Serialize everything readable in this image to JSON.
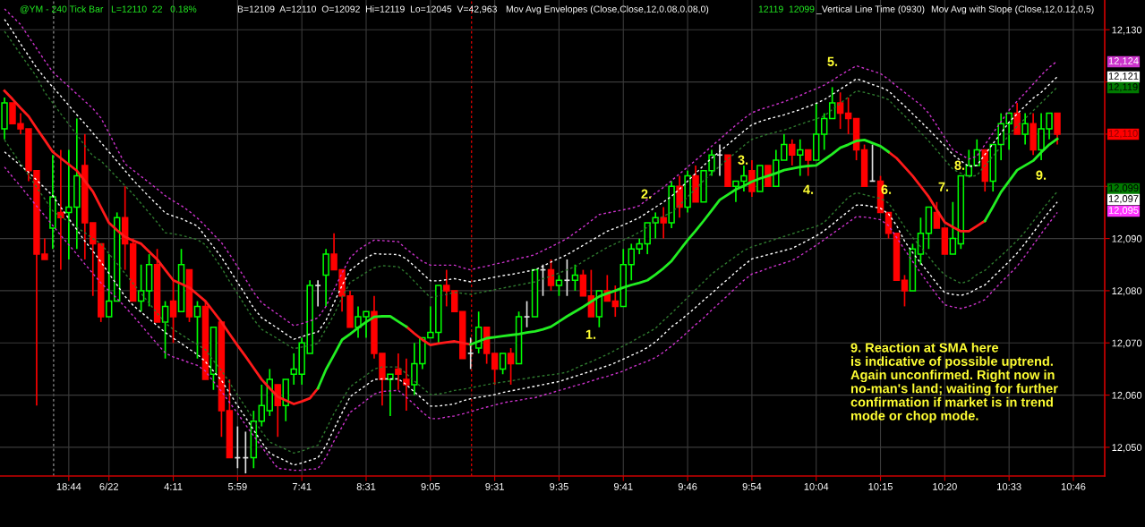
{
  "chart_data": {
    "type": "candlestick",
    "title": "@YM - 240 Tick Bar   L=12110  22   0.18%",
    "subtitle": "B=12109  A=12110  O=12092  Hi=12119  Lo=12045  V=42,963",
    "annotations": [
      "Mov Avg Envelopes (Close,Close,12,0.08,0.08,0)",
      "12119  12099",
      "_Vertical Line Time (0930)",
      "Mov Avg with Slope (Close,12,0.12,0,5)",
      "9. Reaction at SMA here\nis indicative of possible uptrend.\nAgain unconfirmed. Right now in\nno-man's land; waiting for further\nconfirmation if market is in trend\nmode or chop mode.",
      "1.",
      "2.",
      "3.",
      "4.",
      "5.",
      "6.",
      "7.",
      "8.",
      "9.",
      "12,124",
      "12,121",
      "12,119",
      "12,110",
      "12,099",
      "12,097",
      "12,095"
    ],
    "categories": [
      null,
      null,
      null,
      null,
      null,
      null,
      null,
      null,
      "18:44",
      null,
      null,
      null,
      null,
      "6/22",
      null,
      null,
      null,
      null,
      null,
      null,
      null,
      "4:11",
      null,
      null,
      null,
      null,
      null,
      null,
      null,
      "5:59",
      null,
      null,
      null,
      null,
      null,
      null,
      null,
      "7:41",
      null,
      null,
      null,
      null,
      null,
      null,
      null,
      "8:31",
      null,
      null,
      null,
      null,
      null,
      null,
      null,
      "9:05",
      null,
      null,
      null,
      null,
      null,
      null,
      null,
      "9:31",
      null,
      null,
      null,
      null,
      null,
      null,
      null,
      "9:35",
      null,
      null,
      null,
      null,
      null,
      null,
      null,
      "9:41",
      null,
      null,
      null,
      null,
      null,
      null,
      null,
      "9:46",
      null,
      null,
      null,
      null,
      null,
      null,
      null,
      "9:54",
      null,
      null,
      null,
      null,
      null,
      null,
      null,
      "10:04",
      null,
      null,
      null,
      null,
      null,
      null,
      null,
      "10:15",
      null,
      null,
      null,
      null,
      null,
      null,
      null,
      "10:20",
      null,
      null,
      null,
      null,
      null,
      null,
      null,
      "10:33",
      null,
      null,
      null,
      null,
      null,
      null,
      null,
      "10:46"
    ],
    "ylim": [
      12044.5,
      12135.7
    ],
    "yticks": [
      {
        "value": 12050,
        "label": "12,050"
      },
      {
        "value": 12060,
        "label": "12,060"
      },
      {
        "value": 12070,
        "label": "12,070"
      },
      {
        "value": 12080,
        "label": "12,080"
      },
      {
        "value": 12090,
        "label": "12,090"
      },
      {
        "value": 12100,
        "label": null
      },
      {
        "value": 12110,
        "label": null
      },
      {
        "value": 12120,
        "label": null
      },
      {
        "value": 12130,
        "label": "12,130"
      }
    ],
    "grid": true,
    "series": [
      {
        "ohlc": [
          [
            12111,
            12117,
            12109,
            12116
          ],
          [
            12116,
            12116,
            12112,
            12112
          ],
          [
            12112,
            12114,
            12110,
            12111
          ],
          [
            12111,
            12111,
            12101,
            12103
          ],
          [
            12103,
            12103,
            12058,
            12087
          ],
          [
            12087,
            12090,
            12086,
            12086
          ],
          [
            12092,
            12106,
            12088,
            12098
          ],
          [
            12095,
            12107,
            12084,
            12094
          ],
          [
            12095,
            12107,
            12086,
            12096
          ],
          [
            12096,
            12113,
            12088,
            12102
          ],
          [
            12104,
            12110,
            12086,
            12093
          ],
          [
            12093,
            12093,
            12079,
            12089
          ],
          [
            12089,
            12089,
            12074,
            12075
          ],
          [
            12075,
            12087,
            12075,
            12078
          ],
          [
            12078,
            12095,
            12078,
            12094
          ],
          [
            12094,
            12100,
            12084,
            12089
          ],
          [
            12089,
            12090,
            12078,
            12078
          ],
          [
            12078,
            12085,
            12076,
            12080
          ],
          [
            12080,
            12087,
            12077,
            12085
          ],
          [
            12085,
            12088,
            12074,
            12074
          ],
          [
            12074,
            12078,
            12067,
            12077
          ],
          [
            12078,
            12082,
            12070,
            12075
          ],
          [
            12076,
            12088,
            12076,
            12085
          ],
          [
            12084,
            12084,
            12074,
            12075
          ],
          [
            12075,
            12078,
            12067,
            12077
          ],
          [
            12077,
            12078,
            12063,
            12063
          ],
          [
            12064,
            12073,
            12061,
            12073
          ],
          [
            12074,
            12074,
            12052,
            12057
          ],
          [
            12057,
            12063,
            12048,
            12048
          ],
          [
            12048,
            12054,
            12046,
            12048
          ],
          [
            12048,
            12053,
            12045,
            12048
          ],
          [
            12048,
            12057,
            12046,
            12055
          ],
          [
            12055,
            12062,
            12054,
            12058
          ],
          [
            12057,
            12065,
            12056,
            12063
          ],
          [
            12062,
            12062,
            12052,
            12058
          ],
          [
            12058,
            12063,
            12055,
            12063
          ],
          [
            12064,
            12068,
            12062,
            12065
          ],
          [
            12064,
            12071,
            12062,
            12070
          ],
          [
            12068,
            12082,
            12068,
            12081
          ],
          [
            12081,
            12082,
            12077,
            12081
          ],
          [
            12083,
            12088,
            12077,
            12087
          ],
          [
            12087,
            12091,
            12084,
            12084
          ],
          [
            12084,
            12084,
            12076,
            12079
          ],
          [
            12079,
            12080,
            12073,
            12073
          ],
          [
            12073,
            12077,
            12071,
            12075
          ],
          [
            12075,
            12076,
            12071,
            12076
          ],
          [
            12076,
            12079,
            12067,
            12068
          ],
          [
            12068,
            12068,
            12058,
            12063
          ],
          [
            12063,
            12064,
            12056,
            12064
          ],
          [
            12065,
            12068,
            12061,
            12064
          ],
          [
            12063,
            12067,
            12057,
            12062
          ],
          [
            12062,
            12070,
            12060,
            12066
          ],
          [
            12066,
            12071,
            12065,
            12071
          ],
          [
            12071,
            12077,
            12071,
            12072
          ],
          [
            12072,
            12081,
            12070,
            12081
          ],
          [
            12081,
            12084,
            12077,
            12080
          ],
          [
            12080,
            12080,
            12076,
            12076
          ],
          [
            12076,
            12076,
            12067,
            12067
          ],
          [
            12068,
            12071,
            12065,
            12068
          ],
          [
            12069,
            12076,
            12068,
            12073
          ],
          [
            12073,
            12073,
            12066,
            12068
          ],
          [
            12068,
            12068,
            12062,
            12065
          ],
          [
            12065,
            12068,
            12064,
            12068
          ],
          [
            12068,
            12069,
            12062,
            12066
          ],
          [
            12066,
            12076,
            12066,
            12075
          ],
          [
            12075,
            12078,
            12073,
            12075
          ],
          [
            12075,
            12084,
            12075,
            12084
          ],
          [
            12084,
            12085,
            12079,
            12084
          ],
          [
            12084,
            12086,
            12080,
            12081
          ],
          [
            12081,
            12083,
            12079,
            12082
          ],
          [
            12082,
            12086,
            12079,
            12082
          ],
          [
            12082,
            12085,
            12080,
            12083
          ],
          [
            12083,
            12084,
            12079,
            12079
          ],
          [
            12079,
            12084,
            12075,
            12075
          ],
          [
            12075,
            12080,
            12073,
            12080
          ],
          [
            12080,
            12083,
            12078,
            12078
          ],
          [
            12078,
            12081,
            12075,
            12077
          ],
          [
            12077,
            12088,
            12077,
            12085
          ],
          [
            12085,
            12089,
            12082,
            12088
          ],
          [
            12088,
            12090,
            12087,
            12089
          ],
          [
            12089,
            12093,
            12087,
            12093
          ],
          [
            12093,
            12095,
            12090,
            12094
          ],
          [
            12094,
            12096,
            12090,
            12093
          ],
          [
            12093,
            12101,
            12092,
            12100
          ],
          [
            12100,
            12102,
            12094,
            12096
          ],
          [
            12096,
            12103,
            12095,
            12102
          ],
          [
            12102,
            12104,
            12097,
            12097
          ],
          [
            12097,
            12103,
            12097,
            12103
          ],
          [
            12103,
            12107,
            12102,
            12106
          ],
          [
            12106,
            12108,
            12102,
            12106
          ],
          [
            12106,
            12106,
            12100,
            12100
          ],
          [
            12100,
            12101,
            12097,
            12101
          ],
          [
            12101,
            12104,
            12099,
            12102
          ],
          [
            12103,
            12105,
            12098,
            12099
          ],
          [
            12099,
            12104,
            12099,
            12104
          ],
          [
            12104,
            12104,
            12100,
            12100
          ],
          [
            12100,
            12107,
            12100,
            12105
          ],
          [
            12105,
            12110,
            12105,
            12108
          ],
          [
            12108,
            12109,
            12104,
            12106
          ],
          [
            12106,
            12109,
            12102,
            12107
          ],
          [
            12107,
            12107,
            12102,
            12105
          ],
          [
            12105,
            12116,
            12105,
            12110
          ],
          [
            12110,
            12114,
            12107,
            12113
          ],
          [
            12113,
            12119,
            12113,
            12116
          ],
          [
            12116,
            12118,
            12111,
            12114
          ],
          [
            12114,
            12117,
            12110,
            12113
          ],
          [
            12113,
            12113,
            12105,
            12107
          ],
          [
            12107,
            12108,
            12100,
            12100
          ],
          [
            12101,
            12108,
            12101,
            12101
          ],
          [
            12101,
            12102,
            12095,
            12095
          ],
          [
            12095,
            12095,
            12090,
            12091
          ],
          [
            12091,
            12091,
            12082,
            12082
          ],
          [
            12082,
            12083,
            12077,
            12080
          ],
          [
            12080,
            12089,
            12080,
            12088
          ],
          [
            12087,
            12094,
            12085,
            12091
          ],
          [
            12091,
            12096,
            12088,
            12096
          ],
          [
            12095,
            12097,
            12092,
            12092
          ],
          [
            12092,
            12092,
            12087,
            12087
          ],
          [
            12087,
            12097,
            12087,
            12090
          ],
          [
            12089,
            12102,
            12088,
            12102
          ],
          [
            12102,
            12107,
            12102,
            12104
          ],
          [
            12104,
            12109,
            12104,
            12107
          ],
          [
            12107,
            12107,
            12099,
            12101
          ],
          [
            12101,
            12108,
            12099,
            12108
          ],
          [
            12108,
            12114,
            12105,
            12112
          ],
          [
            12112,
            12114,
            12107,
            12114
          ],
          [
            12114,
            12116,
            12110,
            12110
          ],
          [
            12110,
            12114,
            12108,
            12112
          ],
          [
            12112,
            12114,
            12106,
            12107
          ],
          [
            12107,
            12114,
            12105,
            12111
          ],
          [
            12111,
            12114,
            12109,
            12114
          ],
          [
            12114,
            12114,
            12108,
            12110
          ],
          null,
          null
        ]
      },
      {
        "type": "line",
        "color": "#ff1a1a",
        "line_style": "solid",
        "values": [
          12118.3,
          12116.7,
          12115.0,
          12113.4,
          12111.1,
          12108.9,
          12106.6,
          12105.4,
          12104.2,
          12103.0,
          12101.0,
          12099.0,
          12096.0,
          12093.0,
          12091.6,
          12090.3,
          12089.6,
          12089.0,
          12087.5,
          12086.0,
          12084.0,
          12082.0,
          12081.3,
          12080.6,
          12079.3,
          12078.0,
          12076.0,
          12074.0,
          12071.7,
          12069.5,
          12067.4,
          12065.2,
          12063.0,
          12061.3,
          12059.7,
          12059.0,
          12058.3,
          12058.8,
          12059.4,
          12061.3,
          null,
          null,
          null,
          null,
          null,
          null,
          null,
          null,
          null,
          null,
          12073.1,
          12071.8,
          12070.6,
          12069.6,
          12069.9,
          12070.1,
          12070.3,
          12070.0,
          12069.7,
          null,
          null,
          null,
          null,
          null,
          null,
          null,
          null,
          null,
          null,
          null,
          null,
          null,
          null,
          null,
          null,
          null,
          null,
          null,
          null,
          null,
          null,
          null,
          null,
          null,
          null,
          null,
          null,
          null,
          null,
          null,
          null,
          null,
          null,
          null,
          null,
          null,
          null,
          null,
          null,
          null,
          null,
          null,
          null,
          null,
          null,
          null,
          null,
          null,
          null,
          null,
          12106.6,
          12105.4,
          12103.7,
          12102.0,
          12100.0,
          12098.0,
          12095.5,
          12093.1,
          12092.2,
          12091.4,
          12091.4,
          12092.4,
          12093.4,
          null,
          null,
          null,
          null,
          null,
          null,
          null,
          null,
          null,
          null,
          null
        ]
      },
      {
        "type": "line",
        "color": "#22ee22",
        "line_style": "solid",
        "values": [
          null,
          null,
          null,
          null,
          null,
          null,
          null,
          null,
          null,
          null,
          null,
          null,
          null,
          null,
          null,
          null,
          null,
          null,
          null,
          null,
          null,
          null,
          null,
          null,
          null,
          null,
          null,
          null,
          null,
          null,
          null,
          null,
          null,
          null,
          null,
          null,
          null,
          null,
          null,
          12061.3,
          12064.9,
          12067.7,
          12070.6,
          12071.7,
          12072.9,
          12074.0,
          12075.0,
          12075.1,
          12075.1,
          12074.1,
          12073.1,
          null,
          null,
          null,
          null,
          null,
          null,
          null,
          12069.7,
          12070.3,
          12070.9,
          12071.1,
          12071.3,
          12071.5,
          12071.7,
          12072.0,
          12072.2,
          12072.6,
          12073.1,
          12074.1,
          12075.1,
          12076.0,
          12076.9,
          12077.9,
          12078.9,
          12079.5,
          12080.0,
          12080.6,
          12081.1,
          12081.5,
          12082.0,
          12083.1,
          12084.3,
          12085.7,
          12087.7,
          12089.7,
          12091.5,
          12093.4,
          12095.4,
          12097.4,
          12098.4,
          12099.4,
          12100.1,
          12100.9,
          12101.5,
          12102.0,
          12102.5,
          12103.1,
          12103.4,
          12103.7,
          12103.9,
          12104.0,
          12105.1,
          12106.2,
          12107.4,
          12108.0,
          12108.7,
          12108.9,
          12108.3,
          12107.7,
          12106.6,
          null,
          null,
          null,
          null,
          null,
          null,
          null,
          null,
          null,
          null,
          null,
          12093.4,
          12096.1,
          12098.9,
          12101.0,
          12103.1,
          12104.0,
          12104.9,
          12106.5,
          12108.0,
          12109.1,
          null,
          null
        ]
      },
      {
        "type": "line",
        "color": "#cc33cc",
        "line_style": "dashed",
        "values": [
          12134,
          12132.5,
          12131,
          12128.7,
          12126.4,
          12124.1,
          12121.9,
          12120.5,
          12119.1,
          12117.7,
          12116.3,
          12114.9,
          12113.1,
          12110.2,
          12107.2,
          12104.3,
          12103.1,
          12101.9,
          12100.7,
          12099.5,
          12098.2,
          12097.2,
          12096.3,
          12095.2,
          12093.9,
          12092.4,
          12090.8,
          12089.2,
          12087,
          12084.6,
          12082.2,
          12079.7,
          12077.7,
          12076.6,
          12075.5,
          12074.4,
          12073.3,
          12073.7,
          12074.2,
          12074.8,
          12077,
          12080.2,
          12083.4,
          12086.3,
          12087.8,
          12088.8,
          12089.7,
          12089.6,
          12089.5,
          12089.4,
          12088,
          12086.8,
          12085.6,
          12084.9,
          12084.9,
          12084.9,
          12084.9,
          12084.4,
          12084,
          12084.4,
          12084.7,
          12085.1,
          12085.4,
          12085.8,
          12086.2,
          12086.5,
          12086.9,
          12087.7,
          12088.4,
          12089.2,
          12090,
          12091.1,
          12092.2,
          12093.4,
          12094.6,
          12094.9,
          12095.2,
          12095.5,
          12095.8,
          12096.3,
          12097.5,
          12098.7,
          12099.8,
          12101.1,
          12102.4,
          12103.7,
          12105,
          12106.3,
          12107.7,
          12109,
          12110.4,
          12111.7,
          12113,
          12114.1,
          12114.7,
          12115.2,
          12115.7,
          12116.2,
          12116.8,
          12117.4,
          12118.1,
          12118.7,
          12119.4,
          12120.3,
          12121.3,
          12122.2,
          12123.1,
          12122.6,
          12122.1,
          12121.6,
          12120.5,
          12119.2,
          12118,
          12116.8,
          12115.6,
          12114,
          12111.7,
          12109.3,
          12107,
          12106.1,
          12105.2,
          12105.8,
          12108,
          12110.2,
          12112.4,
          12114.6,
          12116.3,
          12117.9,
          12119.6,
          12121.3,
          12122.8,
          12124,
          null,
          null
        ]
      },
      {
        "type": "line",
        "color": "#ffffff",
        "line_style": "dashed",
        "values": [
          12132,
          12129.7,
          12127.3,
          12125,
          12122.7,
          12120.8,
          12119,
          12117.3,
          12115.5,
          12113.7,
          12112,
          12110.2,
          12108.4,
          12106.6,
          12104.8,
          12103,
          12101.2,
          12099.6,
          12098,
          12096.5,
          12094.9,
          12094.3,
          12093.8,
          12093.1,
          12092.4,
          12090.4,
          12088.4,
          12086.4,
          12084,
          12081.6,
          12079.2,
          12076.7,
          12074.8,
          12073.8,
          12072.8,
          12071.7,
          12070.7,
          12071.2,
          12071.7,
          12072.1,
          12074.3,
          12077.7,
          12081,
          12083.9,
          12085.1,
          12086.3,
          12087.1,
          12087,
          12087,
          12086.9,
          12086.1,
          12084.7,
          12083.3,
          12081.9,
          12081.9,
          12082.1,
          12082.3,
          12082,
          12081.7,
          12082,
          12082.3,
          12082.6,
          12082.9,
          12083.1,
          12083.4,
          12083.7,
          12084,
          12084.7,
          12085.5,
          12086.2,
          12086.9,
          12087.8,
          12088.7,
          12089.6,
          12090.5,
          12091.4,
          12092,
          12092.6,
          12093.3,
          12094,
          12095,
          12096,
          12097,
          12098.1,
          12099.5,
          12101,
          12102.5,
          12104,
          12105.4,
          12106.7,
          12108,
          12109.3,
          12110.6,
          12111.8,
          12112.4,
          12112.9,
          12113.3,
          12113.7,
          12114.2,
          12114.7,
          12115.3,
          12115.9,
          12116.6,
          12117.6,
          12118.6,
          12119.6,
          12120.6,
          12120.1,
          12119.5,
          12119,
          12118.3,
          12116.8,
          12115.4,
          12113.9,
          12112.4,
          12110.9,
          12109.3,
          12107.8,
          12106.1,
          12104.9,
          12103.8,
          12104,
          12106.1,
          12108.2,
          12110.2,
          12112.3,
          12113.9,
          12115.4,
          12116.9,
          12118,
          12119.5,
          12121,
          null,
          null
        ]
      },
      {
        "type": "line",
        "color": "#2f7a2f",
        "line_style": "dashed",
        "values": [
          12129.7,
          12127.5,
          12125.3,
          12123.1,
          12121,
          12118,
          12116,
          12113.9,
          12111.9,
          12109.9,
          12107.8,
          12105.8,
          12104.9,
          12103.3,
          12101.7,
          12100.1,
          12098.5,
          12096.7,
          12094.9,
          12093.1,
          12091.1,
          12090.9,
          12090.6,
          12090.2,
          12089.8,
          12088.8,
          12086.6,
          12084.4,
          12081.8,
          12079.4,
          12077,
          12074.5,
          12072.6,
          12071.7,
          12070.8,
          12069.8,
          12068.9,
          12069.2,
          12069.5,
          12069.9,
          12072.7,
          12075.4,
          12078.7,
          12081.6,
          12082.5,
          12083.5,
          12084.4,
          12084.8,
          12084.7,
          12084.6,
          12083.4,
          12081.8,
          12080.2,
          12078.7,
          12079,
          12079.3,
          12079.7,
          12079.5,
          12079.3,
          12079.6,
          12079.9,
          12080.2,
          12080.5,
          12080.8,
          12081.1,
          12081.4,
          12081.7,
          12082.3,
          12082.8,
          12083.4,
          12084,
          12084.6,
          12085.6,
          12086.5,
          12087.4,
          12088.3,
          12089,
          12089.7,
          12090.4,
          12091.2,
          12092.2,
          12093.3,
          12094.3,
          12095,
          12096.4,
          12098,
          12099.5,
          12101.1,
          12102.5,
          12103.9,
          12105.2,
          12106.5,
          12107.8,
          12109,
          12109.5,
          12110,
          12110.4,
          12110.8,
          12111.3,
          12111.9,
          12112.4,
          12112.9,
          12113.5,
          12114.7,
          12115.9,
          12117.1,
          12118.3,
          12118,
          12117.6,
          12117.2,
          12116.6,
          12115,
          12113.5,
          12111.9,
          12110.3,
          12108.7,
          12106.9,
          12105.1,
          12103.3,
          12102.5,
          12101.8,
          12102.1,
          12104,
          12105.8,
          12107.6,
          12110,
          12111.5,
          12113,
          12114.5,
          12116,
          12117.5,
          12119,
          null,
          null
        ]
      },
      {
        "type": "line",
        "color": "#2f7a2f",
        "line_style": "dashed",
        "values": [
          12108.9,
          12106.6,
          12104.4,
          12102.1,
          12099.8,
          12097.6,
          12095.3,
          12094.2,
          12093.2,
          12092.1,
          12091.1,
          12090,
          12089,
          12087.1,
          12085.2,
          12083.3,
          12081.4,
          12079.5,
          12077.6,
          12075.7,
          12073.8,
          12072.6,
          12071.6,
          12070.6,
          12069.7,
          12068.7,
          12066.6,
          12064.7,
          12062.4,
          12060,
          12057.7,
          12055.3,
          12053,
          12051,
          12050.3,
          12049.6,
          12048.9,
          12049.3,
          12049.9,
          12050.4,
          12053.4,
          12056.5,
          12059.1,
          12061.6,
          12062.7,
          12063.8,
          12065,
          12065.4,
          12065.4,
          12065.4,
          12064.1,
          12062.7,
          12061.4,
          12060.1,
          12060.2,
          12060.5,
          12060.9,
          12061.1,
          12061.4,
          12061.7,
          12062,
          12062.3,
          12062.5,
          12062.7,
          12063,
          12063.2,
          12063.5,
          12063.7,
          12063.9,
          12064.1,
          12064.4,
          12065.1,
          12065.8,
          12066.4,
          12067.1,
          12067.8,
          12068.6,
          12069.4,
          12070.2,
          12071.1,
          12071.9,
          12072.8,
          12074.3,
          12075.7,
          12077.2,
          12078.7,
          12080.2,
          12081.7,
          12083.2,
          12084.4,
          12085.5,
          12086.6,
          12087.7,
          12088.4,
          12088.9,
          12089.4,
          12089.9,
          12090.4,
          12090.9,
          12091.4,
          12091.9,
          12092.3,
          12093.1,
          12094.7,
          12096.3,
          12097.9,
          12098.8,
          12098.4,
          12098,
          12097.7,
          12096.8,
          12094.6,
          12092.2,
          12090.2,
          12088.4,
          12086.5,
          12084.6,
          12083,
          12082.2,
          12081.4,
          12081.9,
          12083.1,
          12083.9,
          12085.3,
          12086.7,
          12088.1,
          12089.6,
          12091.3,
          12093.3,
          12095.3,
          12097.2,
          12099,
          null,
          null
        ]
      },
      {
        "type": "line",
        "color": "#ffffff",
        "line_style": "dashed",
        "values": [
          12106.6,
          12105.3,
          12104,
          12102.7,
          12101.2,
          12099.7,
          12098.2,
          12096,
          12093.8,
          12091.7,
          12089.5,
          12087.6,
          12085.5,
          12083.3,
          12081.1,
          12078.9,
          12077.2,
          12075.9,
          12074.6,
          12073.3,
          12072,
          12070.9,
          12069.9,
          12068.8,
          12067.8,
          12066.4,
          12064.6,
          12062.8,
          12060.4,
          12058,
          12055.7,
          12053.3,
          12051,
          12048.9,
          12048.1,
          12047.4,
          12046.6,
          12047,
          12047.5,
          12048,
          12050.3,
          12053.5,
          12056.6,
          12059.7,
          12060.8,
          12061.9,
          12063,
          12063.1,
          12063.1,
          12063.1,
          12062,
          12060.6,
          12059.3,
          12057.9,
          12057.9,
          12058.1,
          12058.3,
          12058.9,
          12059.3,
          12059.6,
          12059.8,
          12060.1,
          12060.5,
          12060.8,
          12061.1,
          12061.4,
          12061.7,
          12062,
          12062.3,
          12062.6,
          12063.1,
          12063.6,
          12064.1,
          12064.6,
          12065.1,
          12065.6,
          12066.2,
          12066.9,
          12067.6,
          12068.3,
          12069.1,
          12070.2,
          12071.6,
          12073.1,
          12074.2,
          12075.5,
          12076.8,
          12078.2,
          12079.5,
          12080.9,
          12082.2,
          12083.6,
          12084.9,
          12086.1,
          12086.5,
          12086.9,
          12087.3,
          12087.7,
          12088.1,
          12088.9,
          12089.7,
          12090.5,
          12091.5,
          12092.7,
          12094,
          12095.2,
          12096.4,
          12096.4,
          12096.1,
          12095.8,
          12094.7,
          12092.5,
          12089.5,
          12087.3,
          12085.3,
          12083.4,
          12081.4,
          12079.6,
          12079.3,
          12079.1,
          12079.5,
          12080.4,
          12081.1,
          12082.6,
          12084.1,
          12085.6,
          12087.2,
          12089.1,
          12091.1,
          12093.2,
          12095.2,
          12097,
          null,
          null
        ]
      },
      {
        "type": "line",
        "color": "#cc33cc",
        "line_style": "dashed",
        "values": [
          12103.7,
          12101.8,
          12100,
          12098.1,
          12096.2,
          12094.4,
          12092.5,
          12090.6,
          12088.8,
          12087,
          12085.1,
          12083.3,
          12081.5,
          12080,
          12078.5,
          12076.9,
          12075.2,
          12073.4,
          12071.6,
          12069.8,
          12068.1,
          12067.3,
          12066.8,
          12066.2,
          12065.7,
          12064.6,
          12062.6,
          12060.7,
          12058.6,
          12056.5,
          12054.3,
          12052.2,
          12050.1,
          12048,
          12046,
          12045.8,
          12045.6,
          12045.6,
          12045.8,
          12045.9,
          12048.1,
          12051.2,
          12053.9,
          12056.7,
          12057.8,
          12059,
          12060.2,
          12060.7,
          12060.8,
          12060.9,
          12059.6,
          12058.2,
          12056.7,
          12055.5,
          12055.5,
          12055.8,
          12056,
          12056.4,
          12056.8,
          12057.3,
          12057.7,
          12058.1,
          12058.5,
          12058.8,
          12059,
          12059.3,
          12059.5,
          12060,
          12060.4,
          12060.9,
          12061.3,
          12061.8,
          12062.2,
          12062.7,
          12063.2,
          12063.6,
          12064.1,
          12064.6,
          12065.3,
          12065.9,
          12066.5,
          12067.2,
          12068.2,
          12069.4,
          12070.7,
          12072.1,
          12073.5,
          12074.8,
          12076.3,
          12077.7,
          12079.1,
          12080.6,
          12082,
          12083.2,
          12083.7,
          12084.3,
          12084.8,
          12085.3,
          12085.8,
          12086.7,
          12087.7,
          12088.7,
          12089.8,
          12090.9,
          12092,
          12093.1,
          12094.2,
          12094.1,
          12093.9,
          12093.6,
          12092.5,
          12090.2,
          12087.9,
          12085.6,
          12083.4,
          12081.3,
          12079.2,
          12077.3,
          12076.9,
          12076.6,
          12077,
          12077.6,
          12078.3,
          12080,
          12081.6,
          12083.1,
          12084.7,
          12086.7,
          12088.8,
          12090.9,
          12093,
          12095,
          null,
          null
        ]
      }
    ]
  }
}
